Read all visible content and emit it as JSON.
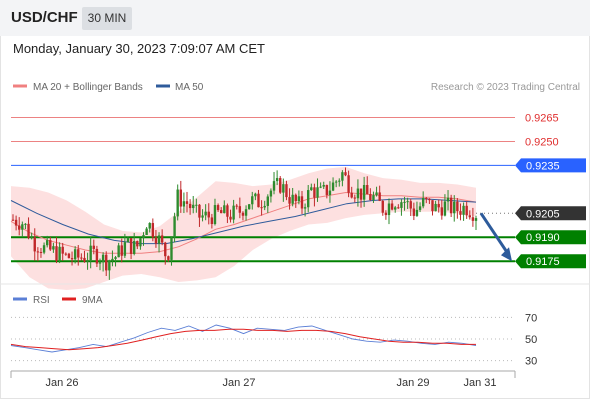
{
  "header": {
    "symbol": "USD/CHF",
    "timeframe": "30 MIN"
  },
  "datetime": "Monday, January 30, 2023 7:09:07 AM CET",
  "legend": {
    "items": [
      {
        "label": "MA 20 + Bollinger Bands",
        "color": "#f08080"
      },
      {
        "label": "MA 50",
        "color": "#2f5b9b"
      }
    ],
    "credit": "Research © 2023 Trading Central"
  },
  "rsi_legend": {
    "items": [
      {
        "label": "RSI",
        "color": "#5b7fd6"
      },
      {
        "label": "9MA",
        "color": "#e02020"
      }
    ]
  },
  "colors": {
    "up": "#2e8b2e",
    "down": "#c0282a",
    "resistance": "#e03030",
    "pivot": "#2962ff",
    "support": "#008000",
    "current": "#333333",
    "arrow": "#2d5b9b",
    "band": "#fde0e0"
  },
  "chart_data": [
    {
      "type": "candlestick",
      "title": "USD/CHF 30 MIN",
      "x_ticks": [
        "Jan 26",
        "Jan 27",
        "Jan 29",
        "Jan 31"
      ],
      "ylim": [
        0.9162,
        0.9279
      ],
      "levels": [
        {
          "label": "0.9265",
          "value": 0.9265,
          "kind": "resistance"
        },
        {
          "label": "0.9250",
          "value": 0.925,
          "kind": "resistance"
        },
        {
          "label": "0.9235",
          "value": 0.9235,
          "kind": "pivot"
        },
        {
          "label": "0.9205",
          "value": 0.9205,
          "kind": "current"
        },
        {
          "label": "0.9190",
          "value": 0.919,
          "kind": "support"
        },
        {
          "label": "0.9175",
          "value": 0.9175,
          "kind": "support"
        }
      ],
      "forecast_arrow": {
        "from": 0.9205,
        "to": 0.9175
      },
      "close_series_approx": [
        0.9201,
        0.9199,
        0.9187,
        0.9183,
        0.9181,
        0.9178,
        0.9177,
        0.9178,
        0.918,
        0.9175,
        0.9178,
        0.9186,
        0.9183,
        0.92,
        0.9191,
        0.9177,
        0.9215,
        0.9211,
        0.9203,
        0.9203,
        0.9205,
        0.9204,
        0.9206,
        0.9213,
        0.9212,
        0.9219,
        0.9223,
        0.9214,
        0.9209,
        0.922,
        0.9217,
        0.9222,
        0.923,
        0.922,
        0.9217,
        0.9215,
        0.9208,
        0.9213,
        0.9213,
        0.9206,
        0.9212,
        0.9208,
        0.921,
        0.9207,
        0.9209,
        0.9205
      ],
      "ma20_approx": [
        0.92,
        0.9193,
        0.9188,
        0.9185,
        0.9182,
        0.918,
        0.918,
        0.918,
        0.9181,
        0.9184,
        0.9189,
        0.9195,
        0.9198,
        0.9202,
        0.9206,
        0.921,
        0.9214,
        0.9216,
        0.9218,
        0.9217,
        0.9216,
        0.9216,
        0.9215,
        0.9215,
        0.9214,
        0.9212
      ],
      "ma50_approx": [
        0.9213,
        0.9205,
        0.9198,
        0.9192,
        0.9188,
        0.9186,
        0.9186,
        0.9189,
        0.9193,
        0.9197,
        0.92,
        0.9203,
        0.9207,
        0.9211,
        0.9213,
        0.9214,
        0.9214,
        0.9213,
        0.9212
      ]
    },
    {
      "type": "line",
      "title": "RSI",
      "y_ticks": [
        30,
        50,
        70
      ],
      "ylim": [
        25,
        75
      ],
      "series": [
        {
          "name": "RSI",
          "values": [
            44,
            42,
            40,
            38,
            40,
            42,
            45,
            43,
            47,
            51,
            56,
            60,
            58,
            62,
            57,
            63,
            60,
            55,
            60,
            59,
            58,
            61,
            62,
            58,
            54,
            50,
            48,
            47,
            49,
            48,
            46,
            45,
            47,
            46,
            44
          ]
        },
        {
          "name": "9MA",
          "values": [
            45,
            43,
            42,
            41,
            40,
            41,
            42,
            44,
            46,
            49,
            52,
            55,
            57,
            58,
            58,
            59,
            59,
            58,
            58,
            57,
            58,
            58,
            57,
            55,
            52,
            50,
            48,
            47,
            47,
            46,
            46,
            45,
            45
          ]
        }
      ]
    }
  ]
}
